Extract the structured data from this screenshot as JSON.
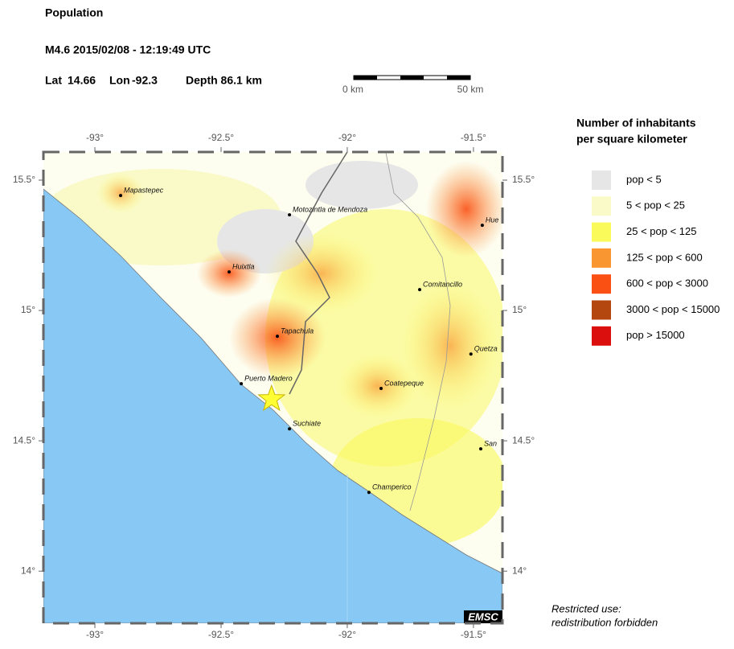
{
  "header": {
    "title": "Population",
    "event": "M4.6  2015/02/08 - 12:19:49 UTC",
    "lat": {
      "label": "Lat",
      "value": 14.66
    },
    "lon": {
      "label": "Lon",
      "value": -92.3
    },
    "depth": "Depth  86.1 km"
  },
  "scale": {
    "start": "0 km",
    "end": "50 km"
  },
  "map": {
    "lonlim": [
      -93.204,
      -91.385
    ],
    "latlim": [
      13.8,
      15.608
    ],
    "lonticks": [
      {
        "value": -93,
        "label": "-93°"
      },
      {
        "value": -92.5,
        "label": "-92.5°"
      },
      {
        "value": -92,
        "label": "-92°"
      },
      {
        "value": -91.5,
        "label": "-91.5°"
      }
    ],
    "latticks": [
      {
        "value": 15.5,
        "label": "15.5°"
      },
      {
        "value": 15,
        "label": "15°"
      },
      {
        "value": 14.5,
        "label": "14.5°"
      },
      {
        "value": 14,
        "label": "14°"
      }
    ],
    "cities": [
      {
        "name": "Mapastepec",
        "lon": -92.898,
        "lat": 15.441
      },
      {
        "name": "Motozintla de Mendoza",
        "lon": -92.229,
        "lat": 15.367
      },
      {
        "name": "Huixtla",
        "lon": -92.468,
        "lat": 15.148
      },
      {
        "name": "Comitancillo",
        "lon": -91.713,
        "lat": 15.08
      },
      {
        "name": "Tapachula",
        "lon": -92.277,
        "lat": 14.901
      },
      {
        "name": "Quetza",
        "lon": -91.51,
        "lat": 14.833
      },
      {
        "name": "Puerto Madero",
        "lon": -92.42,
        "lat": 14.719
      },
      {
        "name": "Coatepeque",
        "lon": -91.866,
        "lat": 14.701
      },
      {
        "name": "Suchiate",
        "lon": -92.229,
        "lat": 14.546
      },
      {
        "name": "Champerico",
        "lon": -91.914,
        "lat": 14.302
      },
      {
        "name": "San",
        "lon": -91.471,
        "lat": 14.469
      },
      {
        "name": "Hue",
        "lon": -91.465,
        "lat": 15.327
      }
    ],
    "logo": "EMSC"
  },
  "legend": {
    "title": [
      "Number of inhabitants",
      "per square kilometer"
    ],
    "items": [
      {
        "label": "pop < 5",
        "color": "#e6e6e6"
      },
      {
        "label": "5 < pop < 25",
        "color": "#fafac8"
      },
      {
        "label": "25 < pop < 125",
        "color": "#fafa5a"
      },
      {
        "label": "125 < pop < 600",
        "color": "#fa9632"
      },
      {
        "label": "600 < pop < 3000",
        "color": "#fa5014"
      },
      {
        "label": "3000 < pop < 15000",
        "color": "#b4460f"
      },
      {
        "label": "pop > 15000",
        "color": "#dc0f0f"
      }
    ]
  },
  "note": [
    "Restricted use:",
    "redistribution forbidden"
  ]
}
